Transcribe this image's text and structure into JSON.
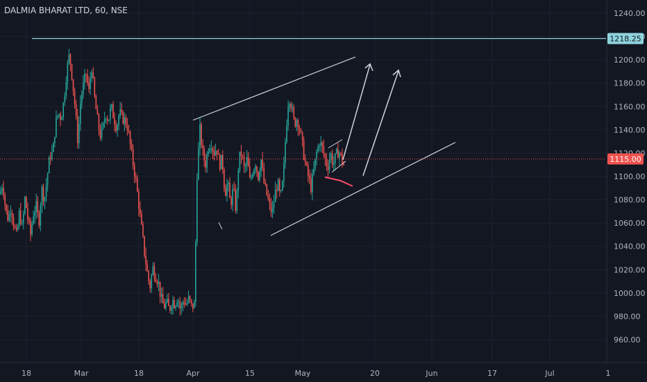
{
  "header": {
    "title": "DALMIA BHARAT LTD, 60, NSE"
  },
  "colors": {
    "background": "#131722",
    "up": "#26a69a",
    "down": "#ef5350",
    "grid": "#1e222d",
    "axis_text": "#b2b5be",
    "drawing": "#d1d4dc",
    "hline": "#8fd3dd",
    "price_line": "#ef5350",
    "mark": "#ff4d6d"
  },
  "chart_data": {
    "type": "candlestick",
    "title": "DALMIA BHARAT LTD, 60, NSE",
    "y_axis": {
      "ticks": [
        960,
        980,
        1000,
        1020,
        1040,
        1060,
        1080,
        1100,
        1120,
        1140,
        1160,
        1180,
        1200,
        1220,
        1240
      ],
      "tick_labels": [
        "960.00",
        "980.00",
        "1000.00",
        "1020.00",
        "1040.00",
        "1060.00",
        "1080.00",
        "1100.00",
        "1120.00",
        "1140.00",
        "1160.00",
        "1180.00",
        "1200.00",
        "1220.00",
        "1240.00"
      ],
      "range": [
        950,
        1248
      ]
    },
    "x_axis": {
      "tick_labels": [
        "18",
        "Mar",
        "18",
        "Apr",
        "15",
        "May",
        "20",
        "Jun",
        "17",
        "Jul",
        "1"
      ]
    },
    "last_price": {
      "value": 1115.0,
      "label": "1115.00"
    },
    "horizontal_line": {
      "value": 1218.25,
      "label": "1218.25"
    },
    "series_trace": [
      [
        0,
        1085
      ],
      [
        4,
        1095
      ],
      [
        8,
        1072
      ],
      [
        12,
        1063
      ],
      [
        16,
        1075
      ],
      [
        20,
        1058
      ],
      [
        24,
        1048
      ],
      [
        28,
        1070
      ],
      [
        32,
        1055
      ],
      [
        36,
        1082
      ],
      [
        40,
        1064
      ],
      [
        44,
        1050
      ],
      [
        48,
        1068
      ],
      [
        52,
        1075
      ],
      [
        56,
        1060
      ],
      [
        60,
        1090
      ],
      [
        64,
        1080
      ],
      [
        68,
        1100
      ],
      [
        72,
        1118
      ],
      [
        76,
        1120
      ],
      [
        80,
        1145
      ],
      [
        84,
        1155
      ],
      [
        88,
        1150
      ],
      [
        92,
        1165
      ],
      [
        96,
        1190
      ],
      [
        100,
        1205
      ],
      [
        104,
        1185
      ],
      [
        108,
        1160
      ],
      [
        112,
        1130
      ],
      [
        116,
        1165
      ],
      [
        120,
        1178
      ],
      [
        124,
        1188
      ],
      [
        128,
        1172
      ],
      [
        132,
        1195
      ],
      [
        136,
        1168
      ],
      [
        140,
        1150
      ],
      [
        144,
        1135
      ],
      [
        148,
        1140
      ],
      [
        152,
        1155
      ],
      [
        156,
        1148
      ],
      [
        160,
        1160
      ],
      [
        164,
        1150
      ],
      [
        168,
        1142
      ],
      [
        172,
        1155
      ],
      [
        176,
        1150
      ],
      [
        180,
        1148
      ],
      [
        184,
        1142
      ],
      [
        188,
        1125
      ],
      [
        192,
        1110
      ],
      [
        196,
        1095
      ],
      [
        200,
        1075
      ],
      [
        204,
        1055
      ],
      [
        208,
        1035
      ],
      [
        212,
        1018
      ],
      [
        216,
        1005
      ],
      [
        220,
        1022
      ],
      [
        224,
        1015
      ],
      [
        228,
        1010
      ],
      [
        232,
        995
      ],
      [
        236,
        988
      ],
      [
        240,
        992
      ],
      [
        244,
        985
      ],
      [
        248,
        995
      ],
      [
        252,
        990
      ],
      [
        256,
        998
      ],
      [
        260,
        985
      ],
      [
        264,
        994
      ],
      [
        268,
        990
      ],
      [
        272,
        995
      ],
      [
        276,
        988
      ],
      [
        280,
        990
      ],
      [
        284,
        1105
      ],
      [
        288,
        1140
      ],
      [
        292,
        1120
      ],
      [
        296,
        1110
      ],
      [
        300,
        1125
      ],
      [
        304,
        1130
      ],
      [
        308,
        1120
      ],
      [
        312,
        1125
      ],
      [
        316,
        1110
      ],
      [
        320,
        1115
      ],
      [
        324,
        1085
      ],
      [
        328,
        1095
      ],
      [
        332,
        1075
      ],
      [
        336,
        1090
      ],
      [
        340,
        1070
      ],
      [
        344,
        1115
      ],
      [
        348,
        1120
      ],
      [
        352,
        1105
      ],
      [
        356,
        1115
      ],
      [
        360,
        1095
      ],
      [
        364,
        1105
      ],
      [
        368,
        1112
      ],
      [
        372,
        1100
      ],
      [
        376,
        1115
      ],
      [
        380,
        1095
      ],
      [
        384,
        1085
      ],
      [
        388,
        1075
      ],
      [
        392,
        1068
      ],
      [
        396,
        1085
      ],
      [
        400,
        1095
      ],
      [
        404,
        1080
      ],
      [
        408,
        1098
      ],
      [
        412,
        1140
      ],
      [
        416,
        1170
      ],
      [
        420,
        1160
      ],
      [
        424,
        1145
      ],
      [
        428,
        1150
      ],
      [
        432,
        1140
      ],
      [
        436,
        1125
      ],
      [
        440,
        1110
      ],
      [
        444,
        1100
      ],
      [
        448,
        1090
      ],
      [
        452,
        1105
      ],
      [
        456,
        1120
      ],
      [
        460,
        1130
      ],
      [
        464,
        1125
      ],
      [
        468,
        1115
      ],
      [
        472,
        1108
      ],
      [
        476,
        1120
      ],
      [
        480,
        1110
      ],
      [
        484,
        1118
      ],
      [
        488,
        1122
      ],
      [
        492,
        1115
      ],
      [
        496,
        1108
      ]
    ]
  }
}
